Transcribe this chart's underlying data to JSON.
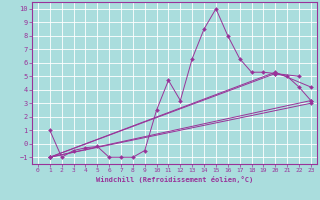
{
  "title": "",
  "xlabel": "Windchill (Refroidissement éolien,°C)",
  "ylabel": "",
  "xlim": [
    -0.5,
    23.5
  ],
  "ylim": [
    -1.5,
    10.5
  ],
  "yticks": [
    -1,
    0,
    1,
    2,
    3,
    4,
    5,
    6,
    7,
    8,
    9,
    10
  ],
  "xticks": [
    0,
    1,
    2,
    3,
    4,
    5,
    6,
    7,
    8,
    9,
    10,
    11,
    12,
    13,
    14,
    15,
    16,
    17,
    18,
    19,
    20,
    21,
    22,
    23
  ],
  "background_color": "#aadddd",
  "line_color": "#993399",
  "grid_color": "#ffffff",
  "lines": [
    {
      "x": [
        1,
        2,
        3,
        4,
        5,
        6,
        7,
        8,
        9,
        10,
        11,
        12,
        13,
        14,
        15,
        16,
        17,
        18,
        19,
        20,
        21,
        22,
        23
      ],
      "y": [
        1,
        -1,
        -0.5,
        -0.3,
        -0.2,
        -1,
        -1,
        -1,
        -0.5,
        2.5,
        4.7,
        3.2,
        6.3,
        8.5,
        10.0,
        8.0,
        6.3,
        5.3,
        5.3,
        5.2,
        5.0,
        4.2,
        3.2
      ]
    },
    {
      "x": [
        1,
        23
      ],
      "y": [
        -1,
        3.2
      ]
    },
    {
      "x": [
        1,
        23
      ],
      "y": [
        -1,
        3.0
      ]
    },
    {
      "x": [
        1,
        20,
        23
      ],
      "y": [
        -1,
        5.3,
        4.2
      ]
    },
    {
      "x": [
        1,
        20,
        22
      ],
      "y": [
        -1,
        5.2,
        5.0
      ]
    }
  ]
}
